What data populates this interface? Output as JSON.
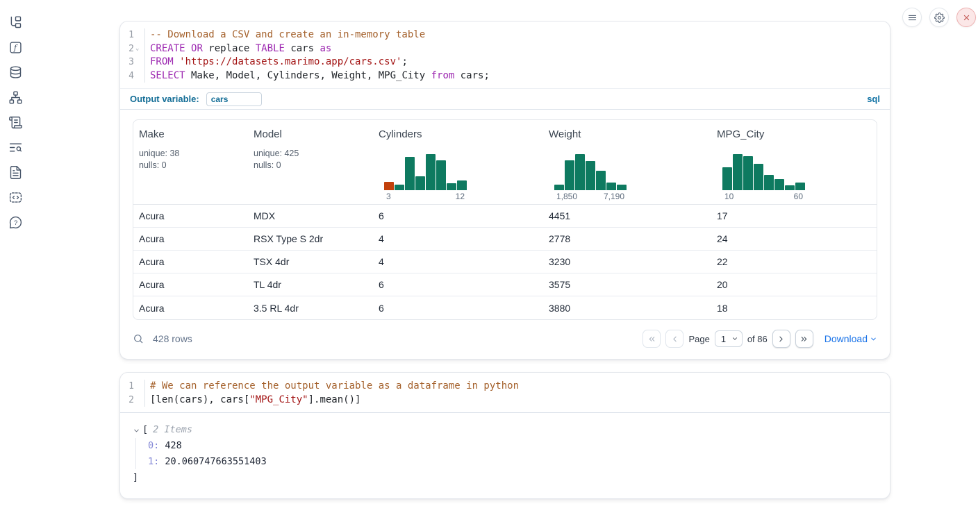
{
  "colors": {
    "histogram_green": "#0e7a60",
    "histogram_orange": "#c2410c",
    "keyword_purple": "#9c27b0",
    "string_red": "#a31515",
    "comment_brown": "#a5622d",
    "link_blue": "#1a73e8",
    "output_variable_teal": "#136d96"
  },
  "sidebar": {
    "icons": [
      "file-explorer",
      "variables",
      "datasources",
      "dependency-graph",
      "logs",
      "outline-search",
      "documentation",
      "snippets",
      "help"
    ]
  },
  "top_actions": {
    "icons": [
      "hamburger-menu",
      "settings-gear",
      "shutdown-close"
    ]
  },
  "sql_cell": {
    "lines": [
      {
        "num": "1",
        "fold": false,
        "tokens": [
          {
            "type": "comment",
            "text": "-- Download a CSV and create an in-memory table"
          }
        ]
      },
      {
        "num": "2",
        "fold": true,
        "tokens": [
          {
            "type": "keyword",
            "text": "CREATE"
          },
          {
            "type": "plain",
            "text": " "
          },
          {
            "type": "keyword",
            "text": "OR"
          },
          {
            "type": "plain",
            "text": " replace "
          },
          {
            "type": "keyword",
            "text": "TABLE"
          },
          {
            "type": "plain",
            "text": " cars "
          },
          {
            "type": "keyword",
            "text": "as"
          }
        ]
      },
      {
        "num": "3",
        "fold": false,
        "tokens": [
          {
            "type": "keyword",
            "text": "FROM"
          },
          {
            "type": "plain",
            "text": " "
          },
          {
            "type": "string",
            "text": "'https://datasets.marimo.app/cars.csv'"
          },
          {
            "type": "plain",
            "text": ";"
          }
        ]
      },
      {
        "num": "4",
        "fold": false,
        "tokens": [
          {
            "type": "keyword",
            "text": "SELECT"
          },
          {
            "type": "plain",
            "text": " Make, Model, Cylinders, Weight, MPG_City "
          },
          {
            "type": "keyword",
            "text": "from"
          },
          {
            "type": "plain",
            "text": " cars;"
          }
        ]
      }
    ],
    "output_variable_label": "Output variable:",
    "output_variable_value": "cars",
    "language_badge": "sql"
  },
  "table": {
    "columns": [
      {
        "label": "Make",
        "stats": [
          "unique: 38",
          "nulls: 0"
        ]
      },
      {
        "label": "Model",
        "stats": [
          "unique: 425",
          "nulls: 0"
        ]
      },
      {
        "label": "Cylinders",
        "chart_index": 0
      },
      {
        "label": "Weight",
        "chart_index": 1
      },
      {
        "label": "MPG_City",
        "chart_index": 2
      }
    ],
    "rows": [
      [
        "Acura",
        "MDX",
        "6",
        "4451",
        "17"
      ],
      [
        "Acura",
        "RSX Type S 2dr",
        "4",
        "2778",
        "24"
      ],
      [
        "Acura",
        "TSX 4dr",
        "4",
        "3230",
        "22"
      ],
      [
        "Acura",
        "TL 4dr",
        "6",
        "3575",
        "20"
      ],
      [
        "Acura",
        "3.5 RL 4dr",
        "6",
        "3880",
        "18"
      ]
    ],
    "footer": {
      "row_count": "428 rows",
      "page_label": "Page",
      "page_value": "1",
      "of_label": "of 86",
      "download_label": "Download"
    }
  },
  "chart_data": [
    {
      "type": "bar",
      "title": "Cylinders histogram",
      "xlabel": "Cylinders",
      "x_min_label": "3",
      "x_max_label": "12",
      "relative_heights": [
        0.22,
        0.14,
        0.88,
        0.36,
        0.95,
        0.78,
        0.18,
        0.25
      ],
      "bar_color": "#0e7a60",
      "bar_colors": [
        "#c2410c",
        null,
        null,
        null,
        null,
        null,
        null,
        null
      ]
    },
    {
      "type": "bar",
      "title": "Weight histogram",
      "xlabel": "Weight",
      "x_min_label": "1,850",
      "x_max_label": "7,190",
      "relative_heights": [
        0.15,
        0.78,
        0.95,
        0.76,
        0.5,
        0.2,
        0.14
      ],
      "bar_color": "#0e7a60"
    },
    {
      "type": "bar",
      "title": "MPG_City histogram",
      "xlabel": "MPG_City",
      "x_min_label": "10",
      "x_max_label": "60",
      "relative_heights": [
        0.6,
        0.95,
        0.89,
        0.69,
        0.4,
        0.29,
        0.13,
        0.2
      ],
      "bar_color": "#0e7a60"
    }
  ],
  "python_cell": {
    "lines": [
      {
        "num": "1",
        "fold": false,
        "tokens": [
          {
            "type": "comment",
            "text": "# We can reference the output variable as a dataframe in python"
          }
        ]
      },
      {
        "num": "2",
        "fold": false,
        "tokens": [
          {
            "type": "plain",
            "text": "[len(cars), cars["
          },
          {
            "type": "string",
            "text": "\"MPG_City\""
          },
          {
            "type": "plain",
            "text": "].mean()]"
          }
        ]
      }
    ]
  },
  "output_tree": {
    "open_bracket": "[",
    "summary": "2 Items",
    "items": [
      {
        "key": "0:",
        "value": "428"
      },
      {
        "key": "1:",
        "value": "20.060747663551403"
      }
    ],
    "close_bracket": "]"
  }
}
